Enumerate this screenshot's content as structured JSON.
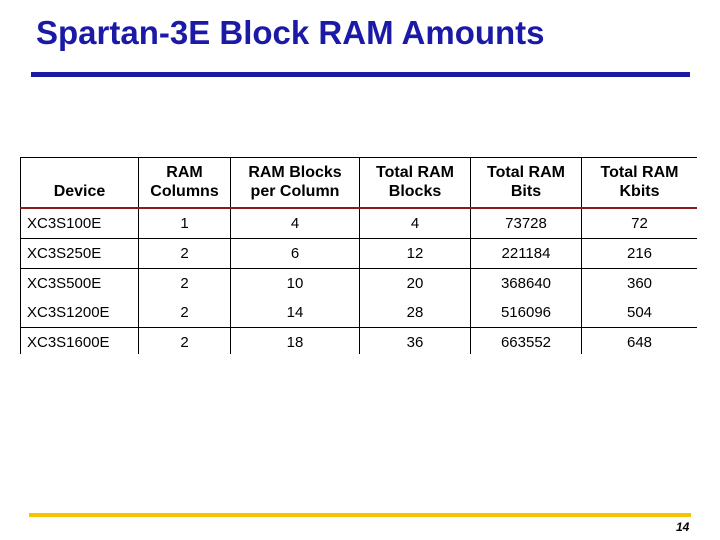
{
  "slide": {
    "title": "Spartan-3E Block RAM Amounts",
    "page_number": "14"
  },
  "table": {
    "headers": {
      "device": "Device",
      "ram_columns": [
        "RAM",
        "Columns"
      ],
      "blocks_per_column": [
        "RAM Blocks",
        "per Column"
      ],
      "total_blocks": [
        "Total RAM",
        "Blocks"
      ],
      "total_bits": [
        "Total RAM",
        "Bits"
      ],
      "total_kbits": [
        "Total RAM",
        "Kbits"
      ]
    },
    "rows": [
      [
        "XC3S100E",
        "1",
        "4",
        "4",
        "73728",
        "72"
      ],
      [
        "XC3S250E",
        "2",
        "6",
        "12",
        "221184",
        "216"
      ],
      [
        "XC3S500E",
        "2",
        "10",
        "20",
        "368640",
        "360"
      ],
      [
        "XC3S1200E",
        "2",
        "14",
        "28",
        "516096",
        "504"
      ],
      [
        "XC3S1600E",
        "2",
        "18",
        "36",
        "663552",
        "648"
      ]
    ]
  },
  "colors": {
    "title": "#1a1aa6",
    "title_rule": "#1a1aa6",
    "header_rule": "#8b1a1a",
    "bottom_rule": "#f2c500"
  }
}
